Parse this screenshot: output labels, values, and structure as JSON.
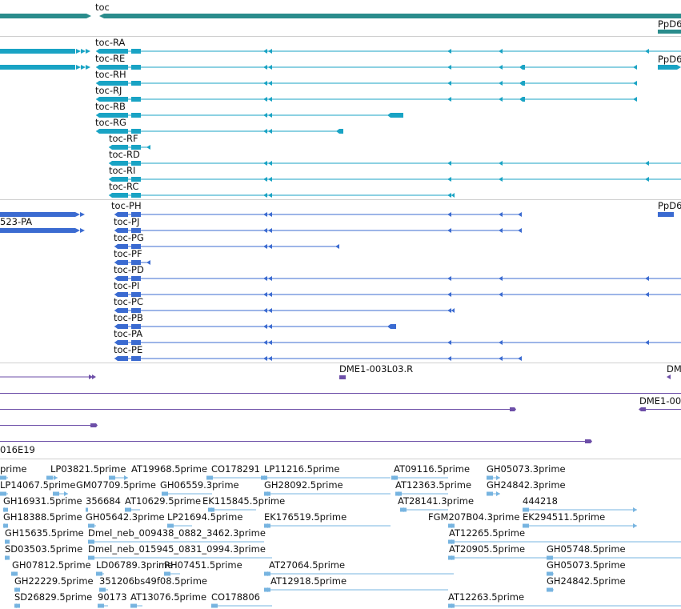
{
  "colors": {
    "gene": "#2a8c8c",
    "transcript_ra": "#19a3c4",
    "protein": "#3b6bd1",
    "clone": "#6d4fa8",
    "est": "#77b4e0",
    "separator": "#cfcfcf"
  },
  "icons": {
    "feature_arrow": "arrow-icon",
    "utr_box": "box-icon"
  },
  "gene_track": {
    "gene_label": "toc",
    "right_gene_label": "PpD6"
  },
  "transcripts": [
    {
      "label": "toc-RA"
    },
    {
      "label": "toc-RE",
      "right_label": "PpD6"
    },
    {
      "label": "toc-RH"
    },
    {
      "label": "toc-RJ"
    },
    {
      "label": "toc-RB"
    },
    {
      "label": "toc-RG"
    },
    {
      "label": "toc-RF"
    },
    {
      "label": "toc-RD"
    },
    {
      "label": "toc-RI"
    },
    {
      "label": "toc-RC"
    }
  ],
  "polypeptides": [
    {
      "label": "toc-PH",
      "left_label": "523-PA",
      "right_label": "PpD6"
    },
    {
      "label": "toc-PJ"
    },
    {
      "label": "toc-PG"
    },
    {
      "label": "toc-PF"
    },
    {
      "label": "toc-PD"
    },
    {
      "label": "toc-PI"
    },
    {
      "label": "toc-PC"
    },
    {
      "label": "toc-PB"
    },
    {
      "label": "toc-PA"
    },
    {
      "label": "toc-PE"
    }
  ],
  "clones": {
    "labels": [
      "DME1-003L03.R",
      "DM",
      "DME1-00",
      "016E19"
    ]
  },
  "ests": [
    "prime",
    "LP03821.5prime",
    "AT19968.5prime",
    "CO178291",
    "LP11216.5prime",
    "AT09116.5prime",
    "GH05073.3prime",
    "LP14067.5prime",
    "GM07709.5prime",
    "GH06559.3prime",
    "GH28092.5prime",
    "AT12363.5prime",
    "GH24842.3prime",
    "GH16931.5prime",
    "356684",
    "AT10629.5prime",
    "EK115845.5prime",
    "AT28141.3prime",
    "444218",
    "GH18388.5prime",
    "GH05642.3prime",
    "LP21694.5prime",
    "EK176519.5prime",
    "FGM207B04.3prime",
    "EK294511.5prime",
    "GH15635.5prime",
    "Dmel_neb_009438_0882_3462.3prime",
    "AT12265.5prime",
    "SD03503.5prime",
    "Dmel_neb_015945_0831_0994.3prime",
    "AT20905.5prime",
    "GH05748.5prime",
    "GH07812.5prime",
    "LD06789.3prime",
    "RH07451.5prime",
    "AT27064.5prime",
    "GH05073.5prime",
    "GH22229.5prime",
    "351206bs49f08.5prime",
    "AT12918.5prime",
    "GH24842.5prime",
    "SD26829.5prime",
    "90173",
    "AT13076.5prime",
    "CO178806",
    "AT12263.5prime"
  ]
}
